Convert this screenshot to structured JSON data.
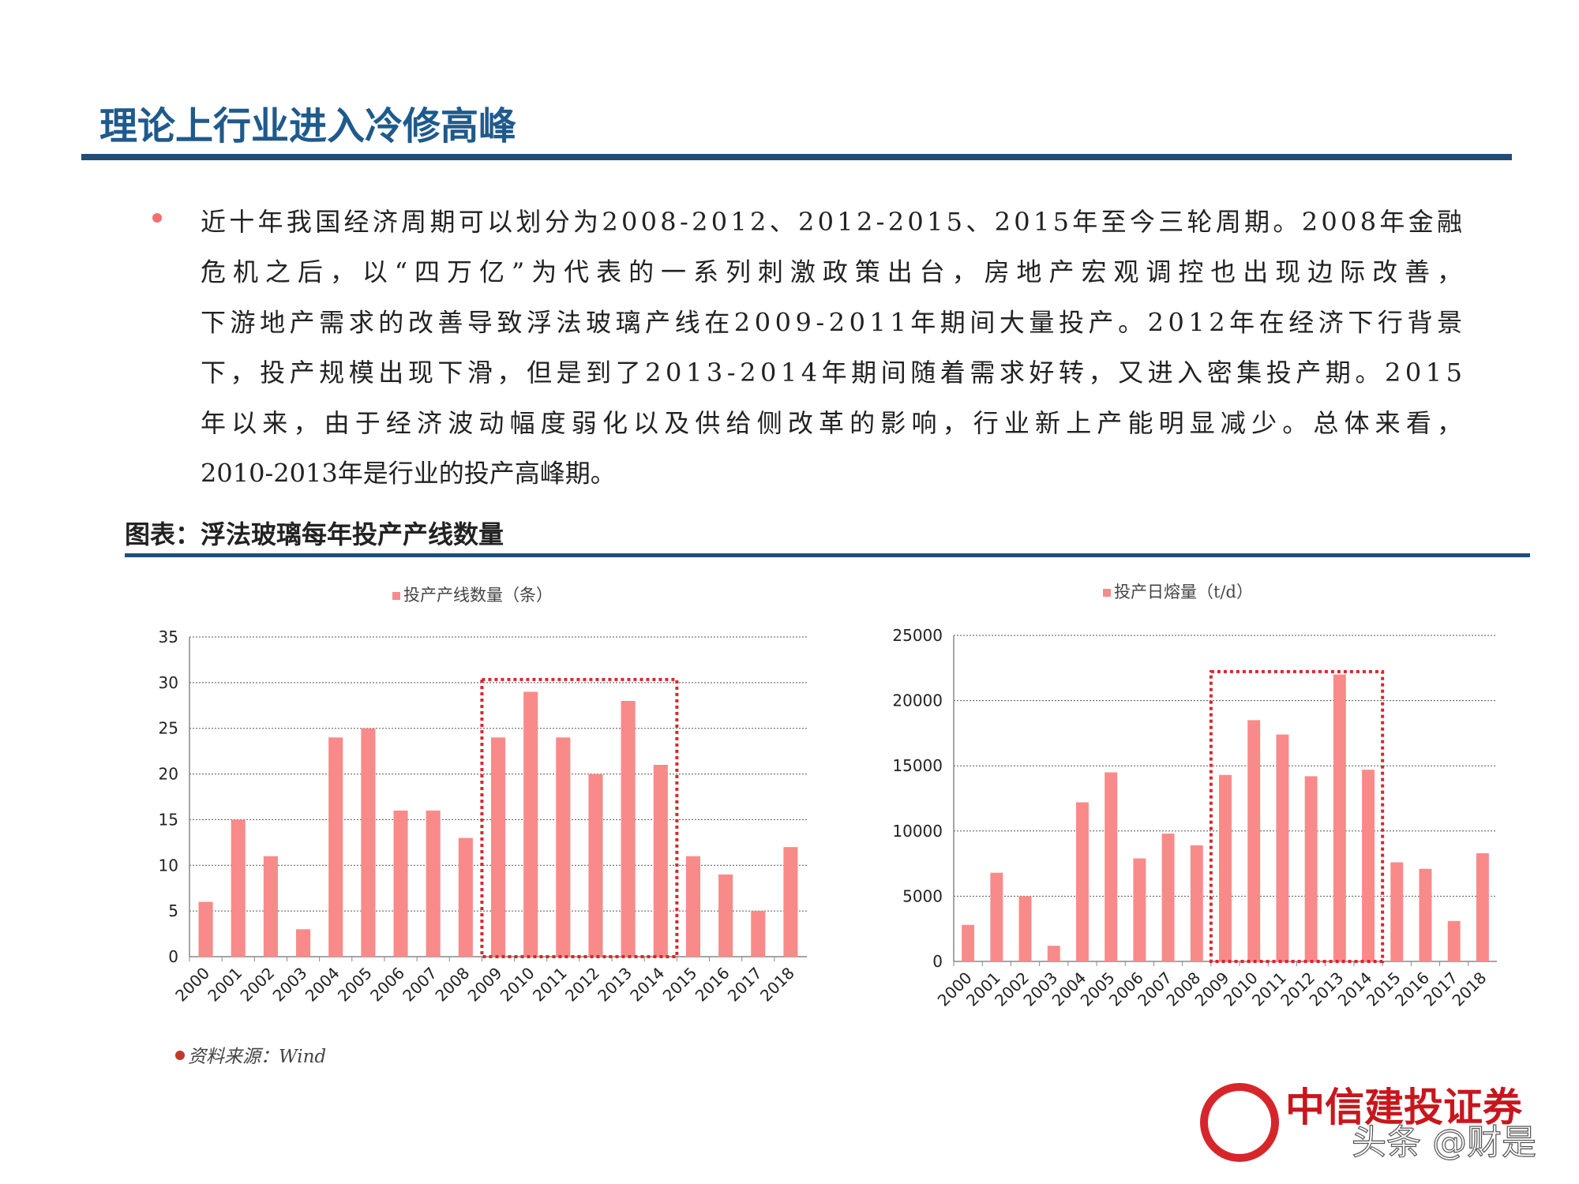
{
  "header": {
    "title": "理论上行业进入冷修高峰"
  },
  "bullet": {
    "lines": [
      "近十年我国经济周期可以划分为2008-2012、2012-2015、2015年至今三轮周期。2008年金融",
      "危机之后，以“四万亿”为代表的一系列刺激政策出台，房地产宏观调控也出现边际改善，",
      "下游地产需求的改善导致浮法玻璃产线在2009-2011年期间大量投产。2012年在经济下行背景",
      "下，投产规模出现下滑，但是到了2013-2014年期间随着需求好转，又进入密集投产期。2015",
      "年以来，由于经济波动幅度弱化以及供给侧改革的影响，行业新上产能明显减少。总体来看，",
      "2010-2013年是行业的投产高峰期。"
    ]
  },
  "figure": {
    "caption": "图表：浮法玻璃每年投产产线数量",
    "source": "资料来源：Wind"
  },
  "logo": {
    "text": "中信建投证券"
  },
  "watermark": {
    "text": "头条 @财是"
  },
  "chart_data": [
    {
      "type": "bar",
      "categories": [
        "2000",
        "2001",
        "2002",
        "2003",
        "2004",
        "2005",
        "2006",
        "2007",
        "2008",
        "2009",
        "2010",
        "2011",
        "2012",
        "2013",
        "2014",
        "2015",
        "2016",
        "2017",
        "2018"
      ],
      "series": [
        {
          "name": "投产产线数量（条）",
          "color": "#f98a8a",
          "values": [
            6,
            15,
            11,
            3,
            24,
            25,
            16,
            16,
            13,
            24,
            29,
            24,
            20,
            28,
            21,
            11,
            9,
            5,
            12
          ]
        }
      ],
      "ylim": [
        0,
        35
      ],
      "yticks": [
        0,
        5,
        10,
        15,
        20,
        25,
        30,
        35
      ],
      "grid": true
    },
    {
      "type": "bar",
      "categories": [
        "2000",
        "2001",
        "2002",
        "2003",
        "2004",
        "2005",
        "2006",
        "2007",
        "2008",
        "2009",
        "2010",
        "2011",
        "2012",
        "2013",
        "2014",
        "2015",
        "2016",
        "2017",
        "2018"
      ],
      "series": [
        {
          "name": "投产日熔量（t/d）",
          "color": "#f98a8a",
          "values": [
            2800,
            6800,
            5000,
            1200,
            12200,
            14500,
            7900,
            9800,
            8900,
            14300,
            18500,
            17400,
            14200,
            22000,
            14700,
            7600,
            7100,
            3100,
            8300
          ]
        }
      ],
      "ylim": [
        0,
        25000
      ],
      "yticks": [
        0,
        5000,
        10000,
        15000,
        20000,
        25000
      ],
      "grid": true
    }
  ]
}
